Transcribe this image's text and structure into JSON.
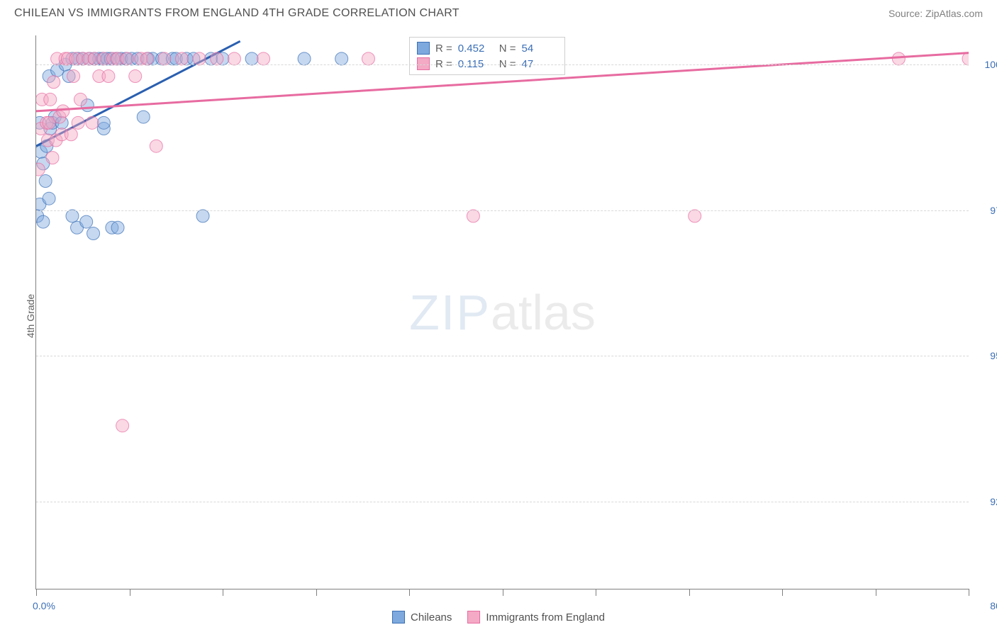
{
  "header": {
    "title": "CHILEAN VS IMMIGRANTS FROM ENGLAND 4TH GRADE CORRELATION CHART",
    "source": "Source: ZipAtlas.com"
  },
  "ylabel": "4th Grade",
  "watermark": {
    "zip": "ZIP",
    "atlas": "atlas"
  },
  "chart": {
    "type": "scatter",
    "xlim": [
      0,
      80
    ],
    "ylim": [
      91.0,
      100.5
    ],
    "xticks": [
      0,
      8,
      16,
      24,
      32,
      40,
      48,
      56,
      64,
      72,
      80
    ],
    "xtick_labels": {
      "first": "0.0%",
      "last": "80.0%"
    },
    "yticks": [
      92.5,
      95.0,
      97.5,
      100.0
    ],
    "ytick_labels": [
      "92.5%",
      "95.0%",
      "97.5%",
      "100.0%"
    ],
    "grid_color": "#d8d8d8",
    "background_color": "#ffffff",
    "axis_color": "#808080",
    "marker_radius": 9,
    "marker_opacity": 0.45,
    "series": [
      {
        "name": "Chileans",
        "fill": "#7ea9de",
        "stroke": "#3b6fb6",
        "R": "0.452",
        "N": "54",
        "trend": {
          "x1": 0,
          "y1": 98.6,
          "x2": 17.5,
          "y2": 100.4,
          "color": "#2a5fb0",
          "width": 3
        },
        "points": [
          [
            0.1,
            97.4
          ],
          [
            0.3,
            97.6
          ],
          [
            0.6,
            97.3
          ],
          [
            0.4,
            98.5
          ],
          [
            0.6,
            98.3
          ],
          [
            0.8,
            98.0
          ],
          [
            1.1,
            97.7
          ],
          [
            0.3,
            99.0
          ],
          [
            0.9,
            98.6
          ],
          [
            1.1,
            99.8
          ],
          [
            1.2,
            98.9
          ],
          [
            1.4,
            99.0
          ],
          [
            1.6,
            99.1
          ],
          [
            1.8,
            99.9
          ],
          [
            2.2,
            99.0
          ],
          [
            2.5,
            100.0
          ],
          [
            2.8,
            99.8
          ],
          [
            3.1,
            97.4
          ],
          [
            3.1,
            100.1
          ],
          [
            3.5,
            97.2
          ],
          [
            3.6,
            100.1
          ],
          [
            4.0,
            100.1
          ],
          [
            4.3,
            97.3
          ],
          [
            4.4,
            99.3
          ],
          [
            4.6,
            100.1
          ],
          [
            4.9,
            97.1
          ],
          [
            5.0,
            100.1
          ],
          [
            5.4,
            100.1
          ],
          [
            5.7,
            100.1
          ],
          [
            5.8,
            98.9
          ],
          [
            5.8,
            99.0
          ],
          [
            6.1,
            100.1
          ],
          [
            6.4,
            100.1
          ],
          [
            6.5,
            97.2
          ],
          [
            6.9,
            100.1
          ],
          [
            7.0,
            97.2
          ],
          [
            7.3,
            100.1
          ],
          [
            7.7,
            100.1
          ],
          [
            8.2,
            100.1
          ],
          [
            8.7,
            100.1
          ],
          [
            9.2,
            99.1
          ],
          [
            9.6,
            100.1
          ],
          [
            10.0,
            100.1
          ],
          [
            10.8,
            100.1
          ],
          [
            11.7,
            100.1
          ],
          [
            12.0,
            100.1
          ],
          [
            12.9,
            100.1
          ],
          [
            13.5,
            100.1
          ],
          [
            14.3,
            97.4
          ],
          [
            15.0,
            100.1
          ],
          [
            16.0,
            100.1
          ],
          [
            18.5,
            100.1
          ],
          [
            23.0,
            100.1
          ],
          [
            26.2,
            100.1
          ]
        ]
      },
      {
        "name": "Immigrants from England",
        "fill": "#f4a9c4",
        "stroke": "#e76ba0",
        "R": "0.115",
        "N": "47",
        "trend": {
          "x1": 0,
          "y1": 99.2,
          "x2": 80,
          "y2": 100.2,
          "color": "#e76ba0",
          "width": 3
        },
        "points": [
          [
            0.2,
            98.2
          ],
          [
            0.4,
            98.9
          ],
          [
            0.5,
            99.4
          ],
          [
            0.9,
            99.0
          ],
          [
            1.0,
            98.7
          ],
          [
            1.1,
            99.0
          ],
          [
            1.2,
            99.4
          ],
          [
            1.4,
            98.4
          ],
          [
            1.5,
            99.7
          ],
          [
            1.7,
            98.7
          ],
          [
            1.8,
            100.1
          ],
          [
            2.0,
            99.1
          ],
          [
            2.2,
            98.8
          ],
          [
            2.3,
            99.2
          ],
          [
            2.5,
            100.1
          ],
          [
            2.7,
            100.1
          ],
          [
            3.0,
            98.8
          ],
          [
            3.2,
            99.8
          ],
          [
            3.4,
            100.1
          ],
          [
            3.6,
            99.0
          ],
          [
            3.8,
            99.4
          ],
          [
            4.0,
            100.1
          ],
          [
            4.5,
            100.1
          ],
          [
            4.8,
            99.0
          ],
          [
            5.0,
            100.1
          ],
          [
            5.4,
            99.8
          ],
          [
            5.8,
            100.1
          ],
          [
            6.2,
            99.8
          ],
          [
            6.6,
            100.1
          ],
          [
            7.0,
            100.1
          ],
          [
            7.4,
            93.8
          ],
          [
            7.8,
            100.1
          ],
          [
            8.5,
            99.8
          ],
          [
            9.0,
            100.1
          ],
          [
            9.5,
            100.1
          ],
          [
            10.3,
            98.6
          ],
          [
            11.0,
            100.1
          ],
          [
            12.5,
            100.1
          ],
          [
            14.0,
            100.1
          ],
          [
            15.5,
            100.1
          ],
          [
            17.0,
            100.1
          ],
          [
            19.5,
            100.1
          ],
          [
            28.5,
            100.1
          ],
          [
            37.5,
            97.4
          ],
          [
            56.5,
            97.4
          ],
          [
            74.0,
            100.1
          ],
          [
            80.0,
            100.1
          ]
        ]
      }
    ]
  },
  "legend": {
    "items": [
      {
        "label": "Chileans",
        "fill": "#7ea9de",
        "stroke": "#3b6fb6"
      },
      {
        "label": "Immigrants from England",
        "fill": "#f4a9c4",
        "stroke": "#e76ba0"
      }
    ]
  },
  "stats_labels": {
    "R": "R =",
    "N": "N ="
  }
}
